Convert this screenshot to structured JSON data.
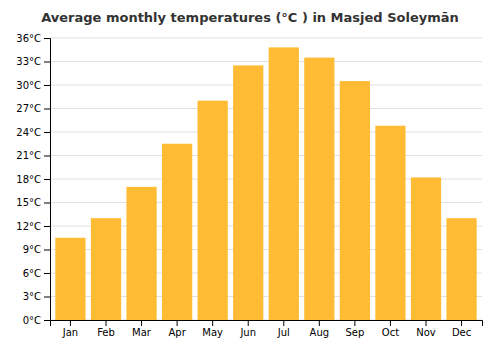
{
  "chart_data": {
    "type": "bar",
    "title": "Average monthly temperatures (°C ) in Masjed Soleymān",
    "categories": [
      "Jan",
      "Feb",
      "Mar",
      "Apr",
      "May",
      "Jun",
      "Jul",
      "Aug",
      "Sep",
      "Oct",
      "Nov",
      "Dec"
    ],
    "values": [
      10.5,
      13.0,
      17.0,
      22.5,
      28.0,
      32.5,
      34.8,
      33.5,
      30.5,
      24.8,
      18.2,
      13.0
    ],
    "color": "#FFBB33",
    "ylim": [
      0,
      36
    ],
    "yticks": [
      {
        "value": 0,
        "label": "0°C"
      },
      {
        "value": 3,
        "label": "3°C"
      },
      {
        "value": 6,
        "label": "6°C"
      },
      {
        "value": 9,
        "label": "9°C"
      },
      {
        "value": 12,
        "label": "12°C"
      },
      {
        "value": 15,
        "label": "15°C"
      },
      {
        "value": 18,
        "label": "18°C"
      },
      {
        "value": 21,
        "label": "21°C"
      },
      {
        "value": 24,
        "label": "24°C"
      },
      {
        "value": 27,
        "label": "27°C"
      },
      {
        "value": 30,
        "label": "30°C"
      },
      {
        "value": 33,
        "label": "33°C"
      },
      {
        "value": 36,
        "label": "36°C"
      }
    ],
    "grid": true
  }
}
